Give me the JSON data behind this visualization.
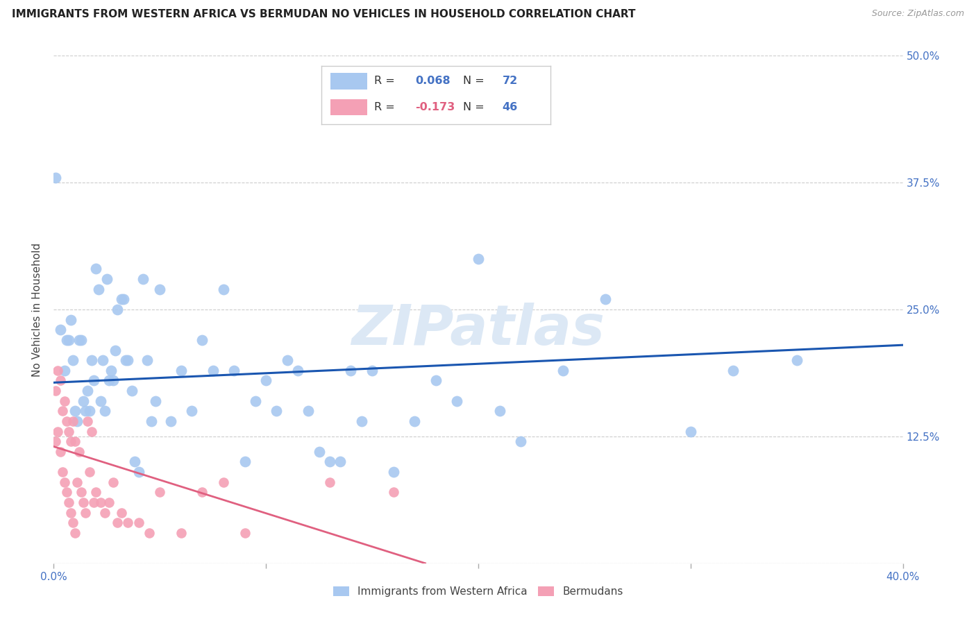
{
  "title": "IMMIGRANTS FROM WESTERN AFRICA VS BERMUDAN NO VEHICLES IN HOUSEHOLD CORRELATION CHART",
  "source": "Source: ZipAtlas.com",
  "ylabel": "No Vehicles in Household",
  "xlim": [
    0.0,
    0.4
  ],
  "ylim": [
    0.0,
    0.5
  ],
  "blue_color": "#A8C8F0",
  "pink_color": "#F4A0B5",
  "blue_line_color": "#1A56B0",
  "pink_line_color": "#E06080",
  "watermark": "ZIPatlas",
  "blue_scatter_x": [
    0.001,
    0.003,
    0.005,
    0.006,
    0.007,
    0.008,
    0.009,
    0.01,
    0.011,
    0.012,
    0.013,
    0.014,
    0.015,
    0.016,
    0.017,
    0.018,
    0.019,
    0.02,
    0.021,
    0.022,
    0.023,
    0.024,
    0.025,
    0.026,
    0.027,
    0.028,
    0.029,
    0.03,
    0.032,
    0.033,
    0.034,
    0.035,
    0.037,
    0.038,
    0.04,
    0.042,
    0.044,
    0.046,
    0.048,
    0.05,
    0.055,
    0.06,
    0.065,
    0.07,
    0.075,
    0.08,
    0.085,
    0.09,
    0.095,
    0.1,
    0.105,
    0.11,
    0.115,
    0.12,
    0.125,
    0.13,
    0.135,
    0.14,
    0.145,
    0.15,
    0.16,
    0.17,
    0.18,
    0.19,
    0.2,
    0.21,
    0.22,
    0.24,
    0.26,
    0.3,
    0.32,
    0.35
  ],
  "blue_scatter_y": [
    0.38,
    0.23,
    0.19,
    0.22,
    0.22,
    0.24,
    0.2,
    0.15,
    0.14,
    0.22,
    0.22,
    0.16,
    0.15,
    0.17,
    0.15,
    0.2,
    0.18,
    0.29,
    0.27,
    0.16,
    0.2,
    0.15,
    0.28,
    0.18,
    0.19,
    0.18,
    0.21,
    0.25,
    0.26,
    0.26,
    0.2,
    0.2,
    0.17,
    0.1,
    0.09,
    0.28,
    0.2,
    0.14,
    0.16,
    0.27,
    0.14,
    0.19,
    0.15,
    0.22,
    0.19,
    0.27,
    0.19,
    0.1,
    0.16,
    0.18,
    0.15,
    0.2,
    0.19,
    0.15,
    0.11,
    0.1,
    0.1,
    0.19,
    0.14,
    0.19,
    0.09,
    0.14,
    0.18,
    0.16,
    0.3,
    0.15,
    0.12,
    0.19,
    0.26,
    0.13,
    0.19,
    0.2
  ],
  "pink_scatter_x": [
    0.001,
    0.001,
    0.002,
    0.002,
    0.003,
    0.003,
    0.004,
    0.004,
    0.005,
    0.005,
    0.006,
    0.006,
    0.007,
    0.007,
    0.008,
    0.008,
    0.009,
    0.009,
    0.01,
    0.01,
    0.011,
    0.012,
    0.013,
    0.014,
    0.015,
    0.016,
    0.017,
    0.018,
    0.019,
    0.02,
    0.022,
    0.024,
    0.026,
    0.028,
    0.03,
    0.032,
    0.035,
    0.04,
    0.045,
    0.05,
    0.06,
    0.07,
    0.08,
    0.09,
    0.13,
    0.16
  ],
  "pink_scatter_y": [
    0.17,
    0.12,
    0.19,
    0.13,
    0.18,
    0.11,
    0.15,
    0.09,
    0.16,
    0.08,
    0.14,
    0.07,
    0.13,
    0.06,
    0.12,
    0.05,
    0.14,
    0.04,
    0.12,
    0.03,
    0.08,
    0.11,
    0.07,
    0.06,
    0.05,
    0.14,
    0.09,
    0.13,
    0.06,
    0.07,
    0.06,
    0.05,
    0.06,
    0.08,
    0.04,
    0.05,
    0.04,
    0.04,
    0.03,
    0.07,
    0.03,
    0.07,
    0.08,
    0.03,
    0.08,
    0.07
  ],
  "blue_trendline_x": [
    0.0,
    0.4
  ],
  "blue_trendline_y": [
    0.178,
    0.215
  ],
  "pink_trendline_x": [
    0.0,
    0.175
  ],
  "pink_trendline_y": [
    0.115,
    0.0
  ]
}
